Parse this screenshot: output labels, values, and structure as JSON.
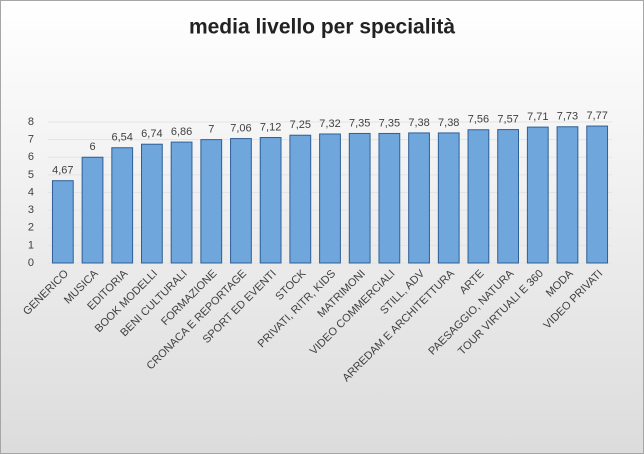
{
  "chart_data": {
    "type": "bar",
    "title": "media livello per specialità",
    "categories": [
      "GENERICO",
      "MUSICA",
      "EDITORIA",
      "BOOK MODELLI",
      "BENI CULTURALI",
      "FORMAZIONE",
      "CRONACA E REPORTAGE",
      "SPORT ED EVENTI",
      "STOCK",
      "PRIVATI, RITR, KIDS",
      "MATRIMONI",
      "VIDEO COMMERCIALI",
      "STILL, ADV",
      "ARREDAM E ARCHITETTURA",
      "ARTE",
      "PAESAGGIO, NATURA",
      "TOUR VIRTUALI E 360",
      "MODA",
      "VIDEO PRIVATI"
    ],
    "values": [
      4.67,
      6,
      6.54,
      6.74,
      6.86,
      7,
      7.06,
      7.12,
      7.25,
      7.32,
      7.35,
      7.35,
      7.38,
      7.38,
      7.56,
      7.57,
      7.71,
      7.73,
      7.77
    ],
    "value_labels": [
      "4,67",
      "6",
      "6,54",
      "6,74",
      "6,86",
      "7",
      "7,06",
      "7,12",
      "7,25",
      "7,32",
      "7,35",
      "7,35",
      "7,38",
      "7,38",
      "7,56",
      "7,57",
      "7,71",
      "7,73",
      "7,77"
    ],
    "color": "#6fa6dc",
    "ylim": [
      0,
      8
    ],
    "yticks": [
      0,
      1,
      2,
      3,
      4,
      5,
      6,
      7,
      8
    ],
    "grid": true
  }
}
